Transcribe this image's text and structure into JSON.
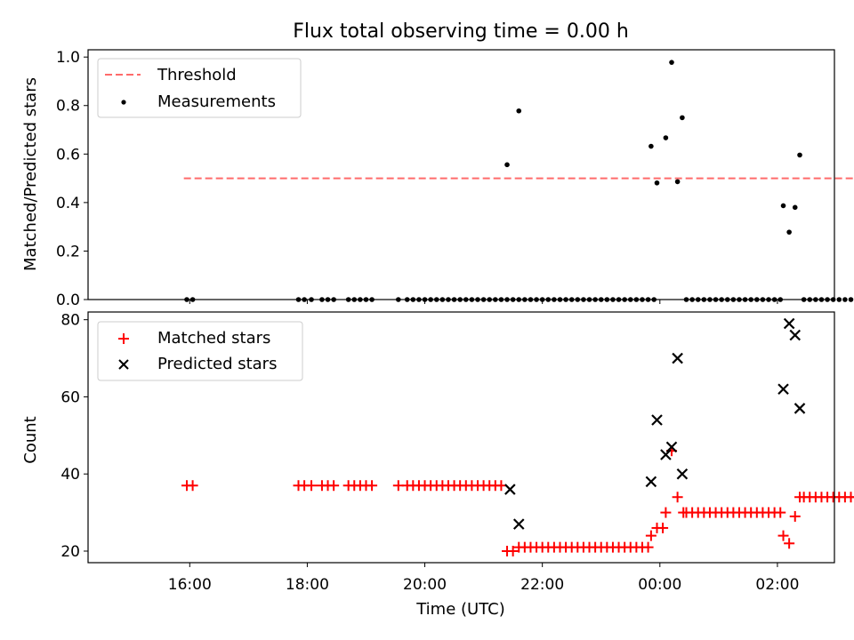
{
  "chart_data": [
    {
      "type": "scatter",
      "title": "Flux total observing time = 0.00 h",
      "xlabel": "",
      "ylabel": "Matched/Predicted stars",
      "x_unit": "hours since 00:00 UTC",
      "xlim": [
        -9.73,
        2.97
      ],
      "ylim": [
        0.0,
        1.03
      ],
      "yticks": [
        0.0,
        0.2,
        0.4,
        0.6,
        0.8,
        1.0
      ],
      "ytick_labels": [
        "0.0",
        "0.2",
        "0.4",
        "0.6",
        "0.8",
        "1.0"
      ],
      "legend": {
        "location": "top-left",
        "entries": [
          "Threshold",
          "Measurements"
        ]
      },
      "threshold": {
        "name": "Threshold",
        "y": 0.5,
        "x_range": [
          -8.1,
          3.3
        ],
        "color": "#ff6b6b"
      },
      "measurements": {
        "name": "Measurements",
        "color": "#000000",
        "x": [
          -8.05,
          -7.95,
          -6.15,
          -6.05,
          -5.93,
          -5.75,
          -5.65,
          -5.55,
          -5.3,
          -5.2,
          -5.1,
          -5.0,
          -4.9,
          -4.45,
          -4.3,
          -4.2,
          -4.1,
          -4.0,
          -3.9,
          -3.8,
          -3.7,
          -3.6,
          -3.5,
          -3.4,
          -3.3,
          -3.2,
          -3.1,
          -3.0,
          -2.9,
          -2.8,
          -2.7,
          -2.6,
          -2.5,
          -2.4,
          -2.3,
          -2.2,
          -2.1,
          -2.0,
          -1.9,
          -1.8,
          -1.7,
          -1.6,
          -1.5,
          -1.4,
          -1.3,
          -1.2,
          -1.1,
          -1.0,
          -0.9,
          -0.8,
          -0.7,
          -0.6,
          -0.5,
          -0.4,
          -0.3,
          -0.2,
          -0.1,
          0.45,
          0.55,
          0.65,
          0.75,
          0.85,
          0.95,
          1.05,
          1.15,
          1.25,
          1.35,
          1.45,
          1.55,
          1.65,
          1.75,
          1.85,
          1.95,
          2.05,
          2.45,
          2.55,
          2.65,
          2.75,
          2.85,
          2.95,
          3.05,
          3.15,
          3.25,
          3.35,
          -2.6,
          -2.4,
          -0.15,
          -0.05,
          0.1,
          0.2,
          0.3,
          0.38,
          2.1,
          2.2,
          2.3,
          2.38
        ],
        "y": [
          0,
          0,
          0,
          0,
          0,
          0,
          0,
          0,
          0,
          0,
          0,
          0,
          0,
          0,
          0,
          0,
          0,
          0,
          0,
          0,
          0,
          0,
          0,
          0,
          0,
          0,
          0,
          0,
          0,
          0,
          0,
          0,
          0,
          0,
          0,
          0,
          0,
          0,
          0,
          0,
          0,
          0,
          0,
          0,
          0,
          0,
          0,
          0,
          0,
          0,
          0,
          0,
          0,
          0,
          0,
          0,
          0,
          0,
          0,
          0,
          0,
          0,
          0,
          0,
          0,
          0,
          0,
          0,
          0,
          0,
          0,
          0,
          0,
          0,
          0,
          0,
          0,
          0,
          0,
          0,
          0,
          0,
          0,
          0,
          0.556,
          0.778,
          0.632,
          0.481,
          0.667,
          0.978,
          0.486,
          0.75,
          0.387,
          0.278,
          0.38,
          0.596
        ]
      }
    },
    {
      "type": "scatter",
      "title": "",
      "xlabel": "Time (UTC)",
      "ylabel": "Count",
      "x_unit": "hours since 00:00 UTC",
      "xlim": [
        -9.73,
        2.97
      ],
      "ylim": [
        17,
        82
      ],
      "yticks": [
        20,
        40,
        60,
        80
      ],
      "ytick_labels": [
        "20",
        "40",
        "60",
        "80"
      ],
      "xticks": [
        -8,
        -6,
        -4,
        -2,
        0,
        2
      ],
      "xtick_labels": [
        "16:00",
        "18:00",
        "20:00",
        "22:00",
        "00:00",
        "02:00"
      ],
      "legend": {
        "location": "top-left",
        "entries": [
          "Matched stars",
          "Predicted stars"
        ]
      },
      "series": [
        {
          "name": "Matched stars",
          "marker": "+",
          "color": "#ff0000",
          "x": [
            -8.05,
            -7.95,
            -6.15,
            -6.05,
            -5.93,
            -5.75,
            -5.65,
            -5.55,
            -5.3,
            -5.2,
            -5.1,
            -5.0,
            -4.9,
            -4.45,
            -4.3,
            -4.2,
            -4.1,
            -4.0,
            -3.9,
            -3.8,
            -3.7,
            -3.6,
            -3.5,
            -3.4,
            -3.3,
            -3.2,
            -3.1,
            -3.0,
            -2.9,
            -2.8,
            -2.7,
            -2.6,
            -2.5,
            -2.4,
            -2.3,
            -2.2,
            -2.1,
            -2.0,
            -1.9,
            -1.8,
            -1.7,
            -1.6,
            -1.5,
            -1.4,
            -1.3,
            -1.2,
            -1.1,
            -1.0,
            -0.9,
            -0.8,
            -0.7,
            -0.6,
            -0.5,
            -0.4,
            -0.3,
            -0.2,
            -0.15,
            -0.05,
            0.05,
            0.1,
            0.2,
            0.3,
            0.4,
            0.45,
            0.55,
            0.65,
            0.75,
            0.85,
            0.95,
            1.05,
            1.15,
            1.25,
            1.35,
            1.45,
            1.55,
            1.65,
            1.75,
            1.85,
            1.95,
            2.05,
            2.1,
            2.2,
            2.3,
            2.38,
            2.45,
            2.55,
            2.65,
            2.75,
            2.85,
            2.95,
            3.05,
            3.15,
            3.25,
            3.35
          ],
          "y": [
            37,
            37,
            37,
            37,
            37,
            37,
            37,
            37,
            37,
            37,
            37,
            37,
            37,
            37,
            37,
            37,
            37,
            37,
            37,
            37,
            37,
            37,
            37,
            37,
            37,
            37,
            37,
            37,
            37,
            37,
            37,
            20,
            20,
            21,
            21,
            21,
            21,
            21,
            21,
            21,
            21,
            21,
            21,
            21,
            21,
            21,
            21,
            21,
            21,
            21,
            21,
            21,
            21,
            21,
            21,
            21,
            24,
            26,
            26,
            30,
            46,
            34,
            30,
            30,
            30,
            30,
            30,
            30,
            30,
            30,
            30,
            30,
            30,
            30,
            30,
            30,
            30,
            30,
            30,
            30,
            24,
            22,
            29,
            34,
            34,
            34,
            34,
            34,
            34,
            34,
            34,
            34,
            34,
            34
          ]
        },
        {
          "name": "Predicted stars",
          "marker": "x",
          "color": "#000000",
          "x": [
            -2.55,
            -2.4,
            -0.15,
            -0.05,
            0.1,
            0.2,
            0.3,
            0.38,
            2.1,
            2.2,
            2.3,
            2.38
          ],
          "y": [
            36,
            27,
            38,
            54,
            45,
            47,
            70,
            40,
            62,
            79,
            76,
            57
          ]
        }
      ]
    }
  ]
}
